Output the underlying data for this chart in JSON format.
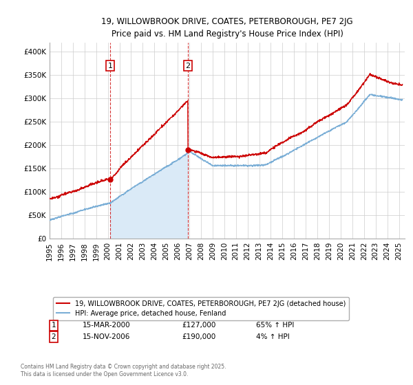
{
  "title_line1": "19, WILLOWBROOK DRIVE, COATES, PETERBOROUGH, PE7 2JG",
  "title_line2": "Price paid vs. HM Land Registry's House Price Index (HPI)",
  "legend_line1": "19, WILLOWBROOK DRIVE, COATES, PETERBOROUGH, PE7 2JG (detached house)",
  "legend_line2": "HPI: Average price, detached house, Fenland",
  "annotation1_label": "1",
  "annotation1_date": "15-MAR-2000",
  "annotation1_price": "£127,000",
  "annotation1_hpi": "65% ↑ HPI",
  "annotation2_label": "2",
  "annotation2_date": "15-NOV-2006",
  "annotation2_price": "£190,000",
  "annotation2_hpi": "4% ↑ HPI",
  "footer": "Contains HM Land Registry data © Crown copyright and database right 2025.\nThis data is licensed under the Open Government Licence v3.0.",
  "house_color": "#cc0000",
  "hpi_color": "#7aaed6",
  "hpi_fill_color": "#daeaf7",
  "background_color": "#ffffff",
  "grid_color": "#cccccc",
  "purchase1_year": 2000.21,
  "purchase2_year": 2006.88,
  "ylim": [
    0,
    420000
  ],
  "yticks": [
    0,
    50000,
    100000,
    150000,
    200000,
    250000,
    300000,
    350000,
    400000
  ]
}
